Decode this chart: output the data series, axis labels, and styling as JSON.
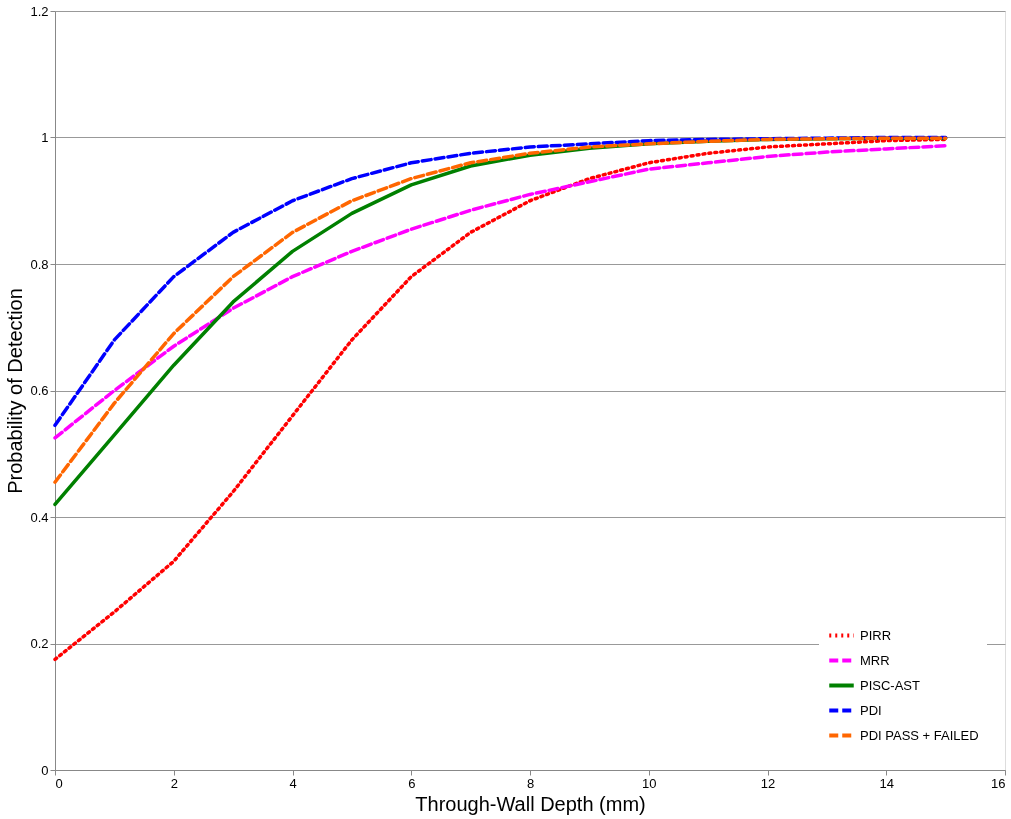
{
  "chart_data": {
    "type": "line",
    "xlabel": "Through-Wall Depth (mm)",
    "ylabel": "Probability of Detection",
    "x": [
      0,
      1,
      2,
      3,
      4,
      5,
      6,
      7,
      8,
      9,
      10,
      11,
      12,
      13,
      14,
      15
    ],
    "series": [
      {
        "name": "PIRR",
        "color": "#ff0000",
        "line_style": "dotted",
        "values": [
          0.175,
          0.25,
          0.33,
          0.44,
          0.56,
          0.68,
          0.78,
          0.85,
          0.9,
          0.935,
          0.96,
          0.975,
          0.985,
          0.99,
          0.995,
          0.997
        ]
      },
      {
        "name": "MRR",
        "color": "#ff00ff",
        "line_style": "dashed",
        "values": [
          0.525,
          0.6,
          0.67,
          0.73,
          0.78,
          0.82,
          0.855,
          0.885,
          0.91,
          0.93,
          0.95,
          0.96,
          0.97,
          0.977,
          0.982,
          0.987
        ]
      },
      {
        "name": "PISC-AST",
        "color": "#008000",
        "line_style": "solid",
        "values": [
          0.42,
          0.53,
          0.64,
          0.74,
          0.82,
          0.88,
          0.925,
          0.955,
          0.972,
          0.983,
          0.99,
          0.994,
          0.997,
          0.998,
          0.999,
          0.999
        ]
      },
      {
        "name": "PDI",
        "color": "#0000ff",
        "line_style": "dashed",
        "values": [
          0.545,
          0.68,
          0.78,
          0.85,
          0.9,
          0.935,
          0.96,
          0.975,
          0.985,
          0.99,
          0.995,
          0.997,
          0.998,
          0.999,
          1.0,
          1.0
        ]
      },
      {
        "name": "PDI PASS + FAILED",
        "color": "#ff6600",
        "line_style": "dashed",
        "values": [
          0.455,
          0.58,
          0.69,
          0.78,
          0.85,
          0.9,
          0.935,
          0.96,
          0.975,
          0.985,
          0.99,
          0.994,
          0.997,
          0.998,
          0.999,
          0.999
        ]
      }
    ],
    "xlim": [
      0,
      16
    ],
    "xticks": [
      0,
      2,
      4,
      6,
      8,
      10,
      12,
      14,
      16
    ],
    "ylim": [
      0,
      1.2
    ],
    "yticks": [
      0,
      0.2,
      0.4,
      0.6,
      0.8,
      1,
      1.2
    ],
    "grid": "y",
    "legend": "bottom right",
    "marker": "none"
  }
}
